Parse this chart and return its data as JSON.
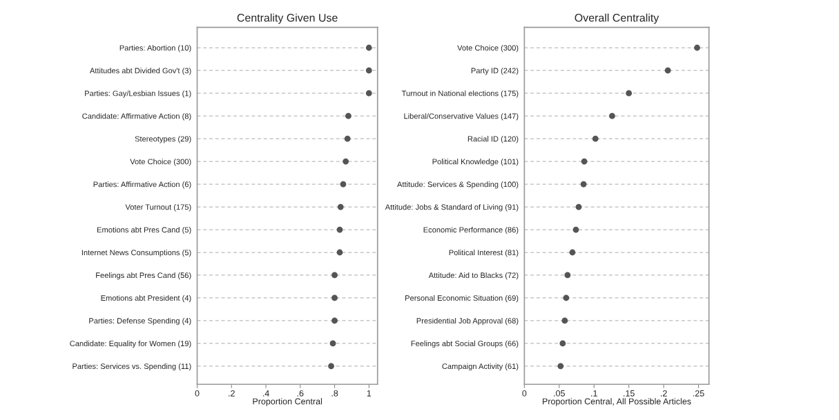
{
  "chart_data": [
    {
      "type": "scatter",
      "title": "Centrality Given Use",
      "xlabel": "Proportion Central",
      "orientation": "horizontal",
      "marker": "circle",
      "grid": "y",
      "categories": [
        "Parties: Abortion (10)",
        "Attitudes abt Divided Gov't (3)",
        "Parties: Gay/Lesbian Issues (1)",
        "Candidate: Affirmative Action (8)",
        "Stereotypes (29)",
        "Vote Choice (300)",
        "Parties: Affirmative Action (6)",
        "Voter Turnout (175)",
        "Emotions abt Pres Cand (5)",
        "Internet News Consumptions (5)",
        "Feelings abt Pres Cand (56)",
        "Emotions abt President (4)",
        "Parties: Defense Spending (4)",
        "Candidate: Equality for Women (19)",
        "Parties: Services vs. Spending (11)"
      ],
      "series": [
        {
          "color": "#555555",
          "values": [
            1.0,
            1.0,
            1.0,
            0.88,
            0.875,
            0.865,
            0.85,
            0.835,
            0.83,
            0.83,
            0.8,
            0.8,
            0.8,
            0.79,
            0.78
          ]
        }
      ],
      "xlim": [
        0,
        1.05
      ],
      "xticks": [
        0,
        {
          "value": 0.2,
          "label": ".2"
        },
        {
          "value": 0.4,
          "label": ".4"
        },
        {
          "value": 0.6,
          "label": ".6"
        },
        {
          "value": 0.8,
          "label": ".8"
        },
        1
      ]
    },
    {
      "type": "scatter",
      "title": "Overall Centrality",
      "xlabel": "Proportion Central, All Possible Articles",
      "orientation": "horizontal",
      "marker": "circle",
      "grid": "y",
      "categories": [
        "Vote Choice (300)",
        "Party ID (242)",
        "Turnout in National elections (175)",
        "Liberal/Conservative Values (147)",
        "Racial ID (120)",
        "Political Knowledge (101)",
        "Attitude: Services & Spending (100)",
        "Attitude: Jobs & Standard of Living (91)",
        "Economic Performance (86)",
        "Political Interest (81)",
        "Attitude: Aid to Blacks (72)",
        "Personal Economic Situation (69)",
        "Presidential Job Approval (68)",
        "Feelings abt Social Groups (66)",
        "Campaign Activity (61)"
      ],
      "series": [
        {
          "color": "#555555",
          "values": [
            0.248,
            0.206,
            0.15,
            0.126,
            0.102,
            0.086,
            0.085,
            0.078,
            0.074,
            0.069,
            0.062,
            0.06,
            0.058,
            0.055,
            0.052
          ]
        }
      ],
      "xlim": [
        0,
        0.265
      ],
      "xticks": [
        0,
        {
          "value": 0.05,
          "label": ".05"
        },
        {
          "value": 0.1,
          "label": ".1"
        },
        {
          "value": 0.15,
          "label": ".15"
        },
        {
          "value": 0.2,
          "label": ".2"
        },
        {
          "value": 0.25,
          "label": ".25"
        }
      ]
    }
  ]
}
